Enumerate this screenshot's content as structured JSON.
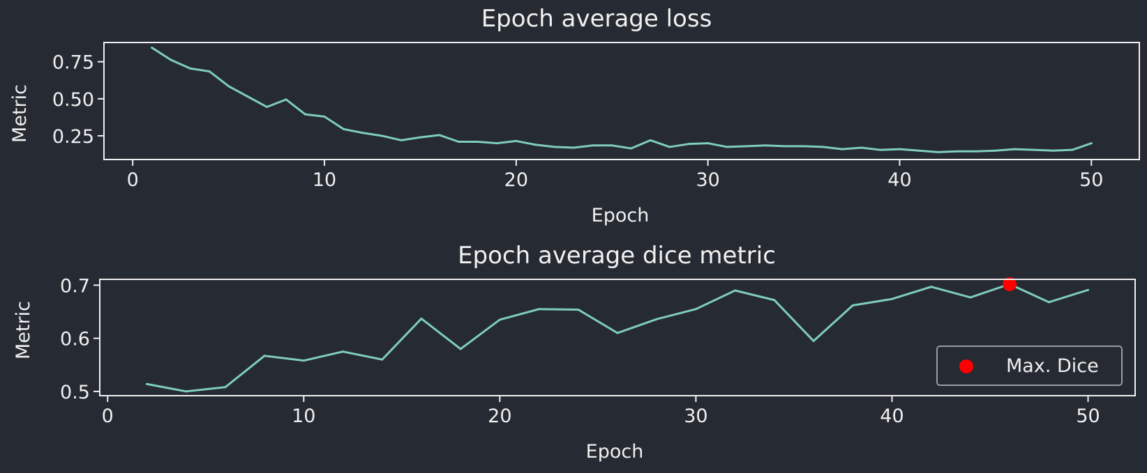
{
  "theme": {
    "background": "#262a32",
    "axes_color": "#f0f0f0",
    "line_color": "#7fcdbb",
    "marker_color": "#ff0000"
  },
  "chart_data": [
    {
      "type": "line",
      "title": "Epoch average loss",
      "xlabel": "Epoch",
      "ylabel": "Metric",
      "xlim": [
        -1.5,
        52.5
      ],
      "ylim": [
        0.09,
        0.88
      ],
      "xticks": [
        0,
        10,
        20,
        30,
        40,
        50
      ],
      "xtick_labels": [
        "0",
        "10",
        "20",
        "30",
        "40",
        "50"
      ],
      "yticks": [
        0.25,
        0.5,
        0.75
      ],
      "ytick_labels": [
        "0.25",
        "0.50",
        "0.75"
      ],
      "grid": false,
      "series": [
        {
          "x": [
            1,
            2,
            3,
            4,
            5,
            6,
            7,
            8,
            9,
            10,
            11,
            12,
            13,
            14,
            15,
            16,
            17,
            18,
            19,
            20,
            21,
            22,
            23,
            24,
            25,
            26,
            27,
            28,
            29,
            30,
            31,
            32,
            33,
            34,
            35,
            36,
            37,
            38,
            39,
            40,
            41,
            42,
            43,
            44,
            45,
            46,
            47,
            48,
            49,
            50
          ],
          "values": [
            0.845,
            0.762,
            0.705,
            0.685,
            0.585,
            0.515,
            0.445,
            0.495,
            0.395,
            0.38,
            0.295,
            0.27,
            0.25,
            0.22,
            0.24,
            0.255,
            0.21,
            0.21,
            0.2,
            0.215,
            0.19,
            0.175,
            0.17,
            0.185,
            0.185,
            0.165,
            0.22,
            0.175,
            0.195,
            0.2,
            0.175,
            0.18,
            0.185,
            0.18,
            0.18,
            0.175,
            0.16,
            0.17,
            0.155,
            0.16,
            0.15,
            0.14,
            0.145,
            0.145,
            0.15,
            0.16,
            0.155,
            0.15,
            0.155,
            0.2
          ]
        }
      ]
    },
    {
      "type": "line",
      "title": "Epoch average dice metric",
      "xlabel": "Epoch",
      "ylabel": "Metric",
      "xlim": [
        -0.4,
        52.4
      ],
      "ylim": [
        0.492,
        0.711
      ],
      "xticks": [
        0,
        10,
        20,
        30,
        40,
        50
      ],
      "xtick_labels": [
        "0",
        "10",
        "20",
        "30",
        "40",
        "50"
      ],
      "yticks": [
        0.5,
        0.6,
        0.7
      ],
      "ytick_labels": [
        "0.5",
        "0.6",
        "0.7"
      ],
      "grid": false,
      "legend": {
        "placement": "lower right",
        "entries": [
          "Max. Dice"
        ]
      },
      "series": [
        {
          "x": [
            2,
            4,
            6,
            8,
            10,
            12,
            14,
            16,
            18,
            20,
            22,
            24,
            26,
            28,
            30,
            32,
            34,
            36,
            38,
            40,
            42,
            44,
            46,
            48,
            50
          ],
          "values": [
            0.514,
            0.5,
            0.508,
            0.567,
            0.558,
            0.575,
            0.56,
            0.637,
            0.58,
            0.635,
            0.655,
            0.654,
            0.61,
            0.636,
            0.655,
            0.69,
            0.672,
            0.595,
            0.662,
            0.674,
            0.697,
            0.677,
            0.702,
            0.668,
            0.691
          ]
        }
      ],
      "marker": {
        "name": "Max. Dice",
        "x": 46,
        "y": 0.702
      }
    }
  ]
}
